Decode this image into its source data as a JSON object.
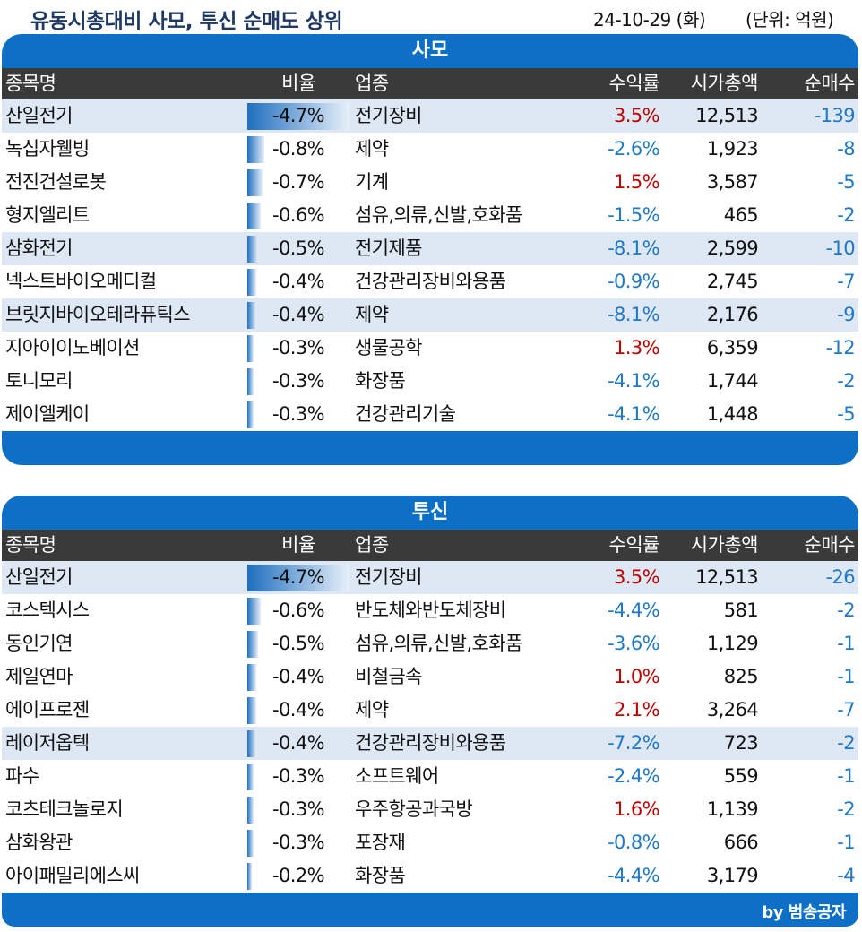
{
  "header": {
    "title": "유동시총대비 사모, 투신 순매도 상위",
    "date": "24-10-29 (화)",
    "unit": "(단위: 억원)"
  },
  "columns": {
    "name": "종목명",
    "ratio": "비율",
    "industry": "업종",
    "return": "수익률",
    "market_cap": "시가총액",
    "net_sell": "순매수"
  },
  "colors": {
    "accent": "#0d6fc6",
    "header_bg": "#3a3a3a",
    "up": "#c00000",
    "down": "#1f78c8",
    "highlight": "#dde8f4"
  },
  "sections": [
    {
      "title": "사모",
      "rows": [
        {
          "name": "산일전기",
          "ratio": "-4.7%",
          "ratio_value": 4.7,
          "industry": "전기장비",
          "return": "3.5%",
          "cap": "12,513",
          "net": "-139",
          "hl": true
        },
        {
          "name": "녹십자웰빙",
          "ratio": "-0.8%",
          "ratio_value": 0.8,
          "industry": "제약",
          "return": "-2.6%",
          "cap": "1,923",
          "net": "-8",
          "hl": false
        },
        {
          "name": "전진건설로봇",
          "ratio": "-0.7%",
          "ratio_value": 0.7,
          "industry": "기계",
          "return": "1.5%",
          "cap": "3,587",
          "net": "-5",
          "hl": false
        },
        {
          "name": "형지엘리트",
          "ratio": "-0.6%",
          "ratio_value": 0.6,
          "industry": "섬유,의류,신발,호화품",
          "return": "-1.5%",
          "cap": "465",
          "net": "-2",
          "hl": false
        },
        {
          "name": "삼화전기",
          "ratio": "-0.5%",
          "ratio_value": 0.5,
          "industry": "전기제품",
          "return": "-8.1%",
          "cap": "2,599",
          "net": "-10",
          "hl": true
        },
        {
          "name": "넥스트바이오메디컬",
          "ratio": "-0.4%",
          "ratio_value": 0.4,
          "industry": "건강관리장비와용품",
          "return": "-0.9%",
          "cap": "2,745",
          "net": "-7",
          "hl": false
        },
        {
          "name": "브릿지바이오테라퓨틱스",
          "ratio": "-0.4%",
          "ratio_value": 0.4,
          "industry": "제약",
          "return": "-8.1%",
          "cap": "2,176",
          "net": "-9",
          "hl": true
        },
        {
          "name": "지아이이노베이션",
          "ratio": "-0.3%",
          "ratio_value": 0.3,
          "industry": "생물공학",
          "return": "1.3%",
          "cap": "6,359",
          "net": "-12",
          "hl": false
        },
        {
          "name": "토니모리",
          "ratio": "-0.3%",
          "ratio_value": 0.3,
          "industry": "화장품",
          "return": "-4.1%",
          "cap": "1,744",
          "net": "-2",
          "hl": false
        },
        {
          "name": "제이엘케이",
          "ratio": "-0.3%",
          "ratio_value": 0.3,
          "industry": "건강관리기술",
          "return": "-4.1%",
          "cap": "1,448",
          "net": "-5",
          "hl": false
        }
      ]
    },
    {
      "title": "투신",
      "rows": [
        {
          "name": "산일전기",
          "ratio": "-4.7%",
          "ratio_value": 4.7,
          "industry": "전기장비",
          "return": "3.5%",
          "cap": "12,513",
          "net": "-26",
          "hl": true
        },
        {
          "name": "코스텍시스",
          "ratio": "-0.6%",
          "ratio_value": 0.6,
          "industry": "반도체와반도체장비",
          "return": "-4.4%",
          "cap": "581",
          "net": "-2",
          "hl": false
        },
        {
          "name": "동인기연",
          "ratio": "-0.5%",
          "ratio_value": 0.5,
          "industry": "섬유,의류,신발,호화품",
          "return": "-3.6%",
          "cap": "1,129",
          "net": "-1",
          "hl": false
        },
        {
          "name": "제일연마",
          "ratio": "-0.4%",
          "ratio_value": 0.4,
          "industry": "비철금속",
          "return": "1.0%",
          "cap": "825",
          "net": "-1",
          "hl": false
        },
        {
          "name": "에이프로젠",
          "ratio": "-0.4%",
          "ratio_value": 0.4,
          "industry": "제약",
          "return": "2.1%",
          "cap": "3,264",
          "net": "-7",
          "hl": false
        },
        {
          "name": "레이저옵텍",
          "ratio": "-0.4%",
          "ratio_value": 0.4,
          "industry": "건강관리장비와용품",
          "return": "-7.2%",
          "cap": "723",
          "net": "-2",
          "hl": true
        },
        {
          "name": "파수",
          "ratio": "-0.3%",
          "ratio_value": 0.3,
          "industry": "소프트웨어",
          "return": "-2.4%",
          "cap": "559",
          "net": "-1",
          "hl": false
        },
        {
          "name": "코츠테크놀로지",
          "ratio": "-0.3%",
          "ratio_value": 0.3,
          "industry": "우주항공과국방",
          "return": "1.6%",
          "cap": "1,139",
          "net": "-2",
          "hl": false
        },
        {
          "name": "삼화왕관",
          "ratio": "-0.3%",
          "ratio_value": 0.3,
          "industry": "포장재",
          "return": "-0.8%",
          "cap": "666",
          "net": "-1",
          "hl": false
        },
        {
          "name": "아이패밀리에스씨",
          "ratio": "-0.2%",
          "ratio_value": 0.2,
          "industry": "화장품",
          "return": "-4.4%",
          "cap": "3,179",
          "net": "-4",
          "hl": false
        }
      ]
    }
  ],
  "footer": {
    "brand": "by 범송공자"
  }
}
